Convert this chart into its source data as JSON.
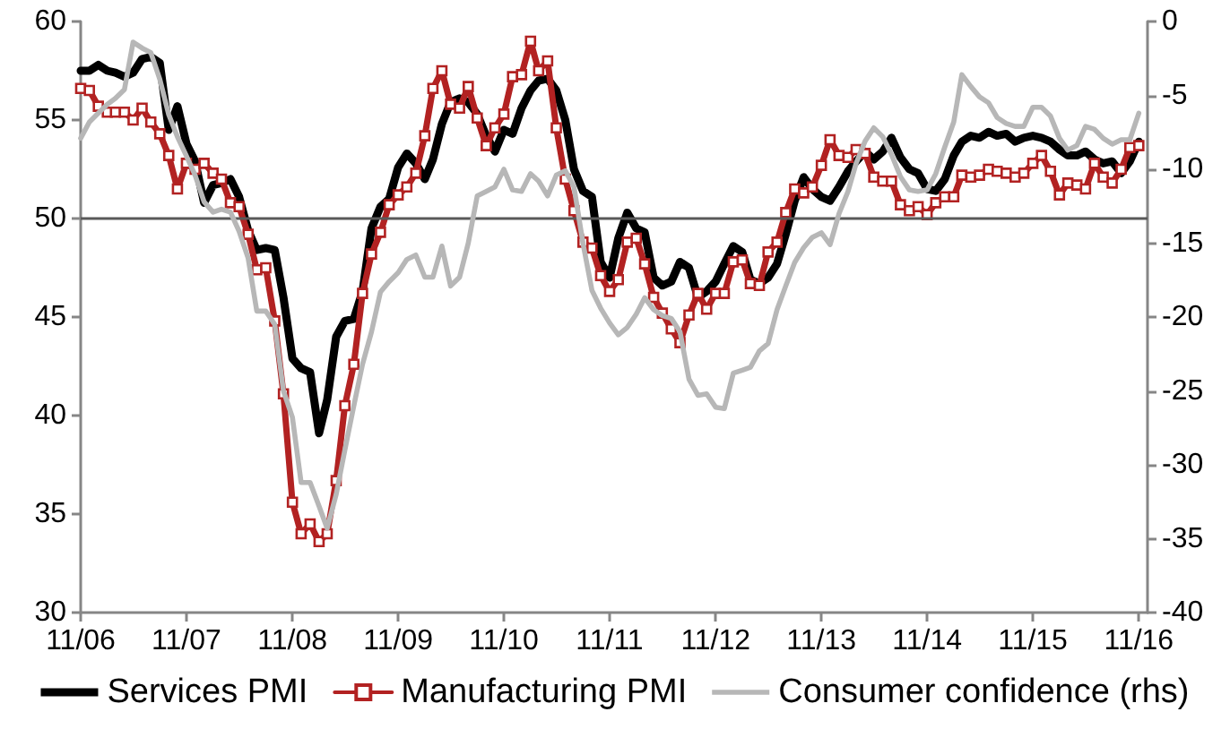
{
  "chart_data": {
    "type": "line",
    "x": [
      "2006-11",
      "2006-12",
      "2007-01",
      "2007-02",
      "2007-03",
      "2007-04",
      "2007-05",
      "2007-06",
      "2007-07",
      "2007-08",
      "2007-09",
      "2007-10",
      "2007-11",
      "2007-12",
      "2008-01",
      "2008-02",
      "2008-03",
      "2008-04",
      "2008-05",
      "2008-06",
      "2008-07",
      "2008-08",
      "2008-09",
      "2008-10",
      "2008-11",
      "2008-12",
      "2009-01",
      "2009-02",
      "2009-03",
      "2009-04",
      "2009-05",
      "2009-06",
      "2009-07",
      "2009-08",
      "2009-09",
      "2009-10",
      "2009-11",
      "2009-12",
      "2010-01",
      "2010-02",
      "2010-03",
      "2010-04",
      "2010-05",
      "2010-06",
      "2010-07",
      "2010-08",
      "2010-09",
      "2010-10",
      "2010-11",
      "2010-12",
      "2011-01",
      "2011-02",
      "2011-03",
      "2011-04",
      "2011-05",
      "2011-06",
      "2011-07",
      "2011-08",
      "2011-09",
      "2011-10",
      "2011-11",
      "2011-12",
      "2012-01",
      "2012-02",
      "2012-03",
      "2012-04",
      "2012-05",
      "2012-06",
      "2012-07",
      "2012-08",
      "2012-09",
      "2012-10",
      "2012-11",
      "2012-12",
      "2013-01",
      "2013-02",
      "2013-03",
      "2013-04",
      "2013-05",
      "2013-06",
      "2013-07",
      "2013-08",
      "2013-09",
      "2013-10",
      "2013-11",
      "2013-12",
      "2014-01",
      "2014-02",
      "2014-03",
      "2014-04",
      "2014-05",
      "2014-06",
      "2014-07",
      "2014-08",
      "2014-09",
      "2014-10",
      "2014-11",
      "2014-12",
      "2015-01",
      "2015-02",
      "2015-03",
      "2015-04",
      "2015-05",
      "2015-06",
      "2015-07",
      "2015-08",
      "2015-09",
      "2015-10",
      "2015-11",
      "2015-12",
      "2016-01",
      "2016-02",
      "2016-03",
      "2016-04",
      "2016-05",
      "2016-06",
      "2016-07",
      "2016-08",
      "2016-09",
      "2016-10",
      "2016-11"
    ],
    "series": [
      {
        "name": "Services PMI",
        "color": "#000000",
        "values": [
          57.5,
          57.5,
          57.8,
          57.5,
          57.4,
          57.2,
          57.4,
          58.1,
          58.2,
          57.9,
          54.5,
          55.7,
          53.8,
          52.9,
          50.8,
          51.7,
          51.8,
          52.0,
          51.1,
          49.4,
          48.4,
          48.5,
          48.4,
          46.0,
          42.9,
          42.4,
          42.2,
          39.1,
          40.8,
          44.0,
          44.8,
          44.9,
          46.3,
          49.5,
          50.6,
          51.0,
          52.6,
          53.3,
          52.8,
          52.0,
          53.0,
          54.8,
          55.9,
          56.1,
          55.9,
          55.3,
          54.2,
          53.4,
          54.5,
          54.3,
          55.6,
          56.5,
          57.0,
          57.1,
          56.5,
          55.0,
          52.5,
          51.4,
          51.1,
          47.8,
          47.0,
          49.0,
          50.3,
          49.5,
          49.3,
          47.0,
          46.6,
          46.8,
          47.8,
          47.5,
          46.0,
          46.3,
          46.8,
          47.7,
          48.6,
          48.3,
          46.9,
          46.7,
          47.0,
          47.7,
          49.2,
          50.9,
          52.1,
          51.5,
          51.1,
          50.9,
          51.6,
          52.4,
          52.9,
          53.4,
          53.0,
          53.4,
          54.1,
          53.1,
          52.5,
          52.3,
          51.5,
          51.4,
          52.0,
          53.2,
          53.9,
          54.2,
          54.1,
          54.4,
          54.2,
          54.3,
          53.9,
          54.1,
          54.2,
          54.1,
          53.9,
          53.5,
          53.2,
          53.2,
          53.4,
          53.0,
          52.8,
          52.9,
          52.3,
          52.9,
          53.9
        ]
      },
      {
        "name": "Manufacturing PMI",
        "color": "#b22222",
        "marker": "square",
        "values": [
          56.6,
          56.5,
          55.7,
          55.4,
          55.4,
          55.4,
          55.0,
          55.6,
          54.9,
          54.3,
          53.2,
          51.5,
          52.8,
          52.5,
          52.8,
          52.3,
          52.0,
          50.8,
          50.6,
          49.2,
          47.4,
          47.5,
          44.8,
          41.1,
          35.6,
          34.0,
          34.5,
          33.6,
          34.0,
          36.7,
          40.5,
          42.6,
          46.2,
          48.2,
          49.3,
          50.7,
          51.2,
          51.6,
          52.3,
          54.2,
          56.6,
          57.5,
          55.8,
          55.6,
          56.7,
          55.1,
          53.7,
          54.6,
          55.3,
          57.2,
          57.3,
          59.0,
          57.5,
          58.0,
          54.6,
          52.0,
          50.4,
          48.8,
          48.5,
          47.1,
          46.3,
          46.9,
          48.8,
          49.0,
          47.7,
          46.0,
          45.2,
          44.4,
          43.7,
          45.1,
          46.2,
          45.4,
          46.2,
          46.2,
          47.8,
          47.9,
          46.7,
          46.6,
          48.3,
          48.8,
          50.3,
          51.5,
          51.3,
          51.6,
          52.7,
          54.0,
          53.2,
          53.1,
          53.5,
          53.3,
          52.1,
          51.9,
          51.9,
          50.7,
          50.4,
          50.6,
          50.2,
          50.8,
          51.1,
          51.1,
          52.2,
          52.1,
          52.2,
          52.5,
          52.4,
          52.3,
          52.1,
          52.3,
          52.8,
          53.2,
          52.4,
          51.2,
          51.8,
          51.7,
          51.5,
          52.8,
          52.1,
          51.8,
          52.5,
          53.6,
          53.7
        ]
      },
      {
        "name": "Consumer confidence (rhs)",
        "color": "#b7b7b7",
        "axis": "y2",
        "values": [
          -7.9,
          -6.8,
          -6.2,
          -5.6,
          -5.2,
          -4.6,
          -1.4,
          -1.8,
          -2.1,
          -3.9,
          -6.3,
          -7.8,
          -9.1,
          -10.4,
          -12.2,
          -12.9,
          -12.7,
          -12.9,
          -14.2,
          -16.0,
          -19.6,
          -19.6,
          -20.5,
          -25.0,
          -26.8,
          -31.2,
          -31.2,
          -32.8,
          -34.3,
          -32.0,
          -29.0,
          -26.0,
          -23.2,
          -21.0,
          -18.3,
          -17.6,
          -17.0,
          -16.1,
          -15.8,
          -17.3,
          -17.3,
          -15.2,
          -17.9,
          -17.3,
          -15.0,
          -11.8,
          -11.5,
          -11.2,
          -10.0,
          -11.4,
          -11.5,
          -10.3,
          -10.8,
          -11.8,
          -10.4,
          -10.1,
          -11.2,
          -15.0,
          -18.2,
          -19.4,
          -20.4,
          -21.2,
          -20.7,
          -19.8,
          -18.7,
          -19.5,
          -19.9,
          -20.1,
          -21.0,
          -24.2,
          -25.3,
          -25.2,
          -26.1,
          -26.2,
          -23.8,
          -23.6,
          -23.4,
          -22.3,
          -21.8,
          -19.5,
          -17.9,
          -16.3,
          -15.3,
          -14.6,
          -14.3,
          -15.1,
          -13.0,
          -11.5,
          -9.6,
          -8.1,
          -7.2,
          -7.8,
          -9.0,
          -10.5,
          -11.4,
          -11.5,
          -11.4,
          -10.3,
          -8.5,
          -6.8,
          -3.6,
          -4.4,
          -5.1,
          -5.5,
          -6.5,
          -6.9,
          -7.1,
          -7.1,
          -5.8,
          -5.8,
          -6.4,
          -7.9,
          -8.7,
          -8.4,
          -7.1,
          -7.3,
          -7.9,
          -8.3,
          -8.0,
          -8.0,
          -6.2
        ]
      }
    ],
    "xlim": [
      "2006-11",
      "2016-12"
    ],
    "xticks": [
      {
        "value": "2006-11",
        "label": "11/06"
      },
      {
        "value": "2007-11",
        "label": "11/07"
      },
      {
        "value": "2008-11",
        "label": "11/08"
      },
      {
        "value": "2009-11",
        "label": "11/09"
      },
      {
        "value": "2010-11",
        "label": "11/10"
      },
      {
        "value": "2011-11",
        "label": "11/11"
      },
      {
        "value": "2012-11",
        "label": "11/12"
      },
      {
        "value": "2013-11",
        "label": "11/13"
      },
      {
        "value": "2014-11",
        "label": "11/14"
      },
      {
        "value": "2015-11",
        "label": "11/15"
      },
      {
        "value": "2016-11",
        "label": "11/16"
      }
    ],
    "ylim": [
      30,
      60
    ],
    "yticks": [
      30,
      35,
      40,
      45,
      50,
      55,
      60
    ],
    "y2lim": [
      -40,
      0
    ],
    "y2ticks": [
      -40,
      -35,
      -30,
      -25,
      -20,
      -15,
      -10,
      -5,
      0
    ],
    "ref_lines": [
      {
        "axis": "y",
        "value": 50,
        "color": "#595959"
      }
    ],
    "grid": false,
    "legend": "bottom",
    "marker": "none",
    "line_style": "solid"
  }
}
